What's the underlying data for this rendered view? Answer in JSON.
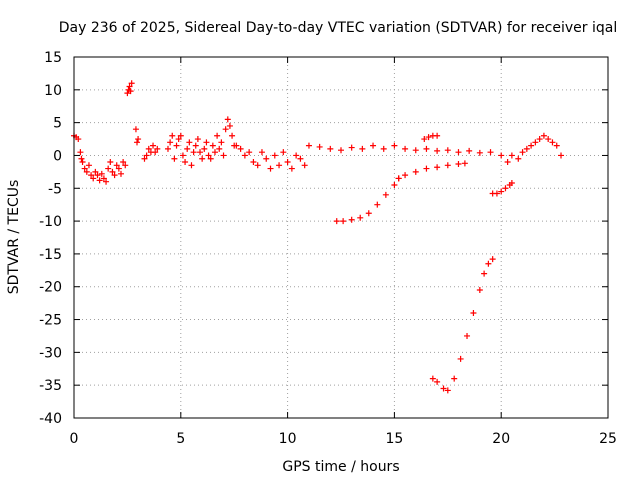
{
  "chart_data": {
    "type": "scatter",
    "title": "Day 236 of 2025, Sidereal Day-to-day VTEC variation (SDTVAR) for receiver iqal",
    "xlabel": "GPS time / hours",
    "ylabel": "SDTVAR / TECUs",
    "xlim": [
      0,
      25
    ],
    "ylim": [
      -40,
      15
    ],
    "xticks": [
      0,
      5,
      10,
      15,
      20,
      25
    ],
    "yticks": [
      -40,
      -35,
      -30,
      -25,
      -20,
      -15,
      -10,
      -5,
      0,
      5,
      10,
      15
    ],
    "grid": true,
    "marker": "+",
    "color": "#ff0000",
    "series": [
      {
        "name": "SDTVAR",
        "x": [
          0.0,
          0.1,
          0.2,
          0.3,
          0.35,
          0.4,
          0.5,
          0.6,
          0.7,
          0.8,
          0.9,
          1.0,
          1.1,
          1.2,
          1.3,
          1.4,
          1.5,
          1.6,
          1.7,
          1.8,
          1.9,
          2.0,
          2.1,
          2.2,
          2.3,
          2.4,
          2.5,
          2.55,
          2.6,
          2.65,
          2.7,
          2.9,
          2.95,
          3.0,
          3.3,
          3.4,
          3.5,
          3.6,
          3.7,
          3.8,
          3.9,
          4.4,
          4.5,
          4.6,
          4.7,
          4.8,
          4.9,
          5.0,
          5.1,
          5.2,
          5.3,
          5.4,
          5.5,
          5.6,
          5.7,
          5.8,
          5.9,
          6.0,
          6.1,
          6.2,
          6.3,
          6.4,
          6.5,
          6.6,
          6.7,
          6.8,
          6.9,
          7.0,
          7.1,
          7.2,
          7.3,
          7.4,
          7.5,
          7.6,
          7.8,
          8.0,
          8.2,
          8.4,
          8.6,
          8.8,
          9.0,
          9.2,
          9.4,
          9.6,
          9.8,
          10.0,
          10.2,
          10.4,
          10.6,
          10.8,
          11.0,
          11.5,
          12.0,
          12.5,
          13.0,
          13.5,
          14.0,
          14.5,
          15.0,
          15.5,
          16.0,
          16.5,
          17.0,
          17.5,
          18.0,
          18.5,
          19.0,
          19.5,
          20.0,
          20.3,
          15.2,
          15.5,
          16.0,
          16.5,
          17.0,
          17.5,
          18.0,
          18.3,
          16.4,
          16.6,
          16.8,
          17.0,
          12.3,
          12.6,
          13.0,
          13.4,
          13.8,
          14.2,
          14.6,
          15.0,
          15.2,
          16.8,
          17.0,
          17.3,
          17.5,
          17.8,
          18.1,
          18.4,
          18.7,
          19.0,
          19.2,
          19.4,
          19.6,
          19.6,
          19.8,
          20.0,
          20.2,
          20.4,
          20.5,
          20.5,
          20.8,
          21.0,
          21.2,
          21.4,
          21.6,
          21.8,
          22.0,
          22.2,
          22.4,
          22.6,
          22.8
        ],
        "y": [
          3.0,
          2.8,
          2.5,
          0.5,
          -0.5,
          -1.0,
          -2.0,
          -2.5,
          -1.5,
          -3.0,
          -3.5,
          -2.5,
          -3.0,
          -3.8,
          -2.8,
          -3.5,
          -4.0,
          -2.0,
          -1.0,
          -2.5,
          -3.0,
          -1.5,
          -2.0,
          -2.8,
          -1.0,
          -1.5,
          9.5,
          10.0,
          10.5,
          9.8,
          11.0,
          4.0,
          2.0,
          2.5,
          -0.5,
          0.0,
          1.0,
          0.5,
          1.5,
          0.5,
          1.0,
          1.0,
          2.0,
          3.0,
          -0.5,
          1.5,
          2.5,
          3.0,
          0.0,
          -1.0,
          1.0,
          2.0,
          -1.5,
          0.5,
          1.5,
          2.5,
          0.5,
          -0.5,
          1.0,
          2.0,
          0.0,
          -0.5,
          1.5,
          0.5,
          3.0,
          1.0,
          2.0,
          0.0,
          4.0,
          5.5,
          4.5,
          3.0,
          1.5,
          1.5,
          1.0,
          0.0,
          0.5,
          -1.0,
          -1.5,
          0.5,
          -0.5,
          -2.0,
          0.0,
          -1.5,
          0.5,
          -1.0,
          -2.0,
          0.0,
          -0.5,
          -1.5,
          1.5,
          1.3,
          1.0,
          0.8,
          1.2,
          1.0,
          1.5,
          1.0,
          1.5,
          1.0,
          0.8,
          1.0,
          0.7,
          0.8,
          0.5,
          0.7,
          0.4,
          0.5,
          0.0,
          -1.0,
          -3.5,
          -3.0,
          -2.5,
          -2.0,
          -1.8,
          -1.5,
          -1.3,
          -1.2,
          2.5,
          2.8,
          3.0,
          3.0,
          -10.0,
          -10.0,
          -9.8,
          -9.5,
          -8.8,
          -7.5,
          -6.0,
          -4.5,
          -3.5,
          -34.0,
          -34.5,
          -35.5,
          -35.8,
          -34.0,
          -31.0,
          -27.5,
          -24.0,
          -20.5,
          -18.0,
          -16.5,
          -15.8,
          -5.8,
          -5.8,
          -5.5,
          -5.0,
          -4.5,
          -4.2,
          0.0,
          -0.5,
          0.5,
          1.0,
          1.5,
          2.0,
          2.5,
          3.0,
          2.5,
          2.0,
          1.5,
          0.0
        ]
      }
    ]
  }
}
